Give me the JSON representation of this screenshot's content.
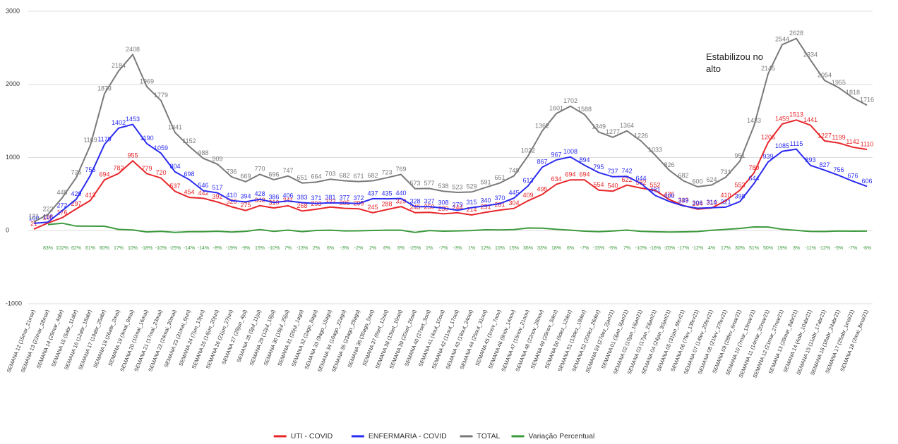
{
  "chart_data": {
    "type": "line",
    "categories": [
      "SEMANA 12 (15mar_21mar)",
      "SEMANA 13 (22mar_28mar)",
      "SEMANA 14 (29mar_4abr)",
      "SEMANA 15 (5abr_11abr)",
      "SEMANA 16 (12abr_18abr)",
      "SEMANA 17 (19abr_25abr)",
      "SEMANA 18 (26abr_2mai)",
      "SEMANA 19 (3mai_9mai)",
      "SEMANA 20 (10mai_16mai)",
      "SEMANA 21 (17mai_23mai)",
      "SEMANA 22 (24mai_30mai)",
      "SEMANA 23 (31mai_6jun)",
      "SEMANA 24 (7jun_13jun)",
      "SEMANA 25 (14jun_20jun)",
      "SEMANA 26 (21jun_27jun)",
      "SEMANA 27 (28jun_4jul)",
      "SEMANA 28 (5jul_11jul)",
      "SEMANA 29 (12jul_18jul)",
      "SEMANA 30 (19jul_25jul)",
      "SEMANA 31 (26jul_1ago)",
      "SEMANA 32 (2ago_8ago)",
      "SEMANA 33 (9ago_15ago)",
      "SEMANA 34 (16ago_22ago)",
      "SEMANA 35 (23ago_29ago)",
      "SEMANA 36 (30ago_5set)",
      "SEMANA 37 (6set_12set)",
      "SEMANA 38 (13set_19set)",
      "SEMANA 39 (20set_26set)",
      "SEMANA 40 (27set_3out)",
      "SEMANA 41 (4out_10out)",
      "SEMANA 42 (11out_17out)",
      "SEMANA 43 (18out_24out)",
      "SEMANA 44 (25out_31out)",
      "SEMANA 45 (1nov_7nov)",
      "SEMANA 46 (8nov_14nov)",
      "SEMANA 47 (15nov_21nov)",
      "SEMANA 48 (22nov_28nov)",
      "SEMANA 49 (29nov_5dez)",
      "SEMANA 50 (6dez_12dez)",
      "SEMANA 51 (13dez_19dez)",
      "SEMANA 52 (20dez_26dez)",
      "SEMANA 53 (27dez_2jan21)",
      "SEMANA 01 (3jan_9jan21)",
      "SEMANA 02 (10jan_16jan21)",
      "SEMANA 03 (17jan_23jan21)",
      "SEMANA 04 (24jan_30jan21)",
      "SEMANA 05 (31jan_6fev21)",
      "SEMANA 06 (7fev_13fev21)",
      "SEMANA 07 (14fev_20fev21)",
      "SEMANA 08 (21fev_27fev21)",
      "SEMANA 09 (28fev_6mar21)",
      "SEMANA 10 (7mar_13mar21)",
      "SEMANA 11 (14mar_20mar21)",
      "SEMANA 12 (21mar_27mar21)",
      "SEMANA 13 (28mar_3abr21)",
      "SEMANA 14 (4abr_10abr21)",
      "SEMANA 15 (11abr_17abr21)",
      "SEMANA 16 (18abr_24abr21)",
      "SEMANA 17 (25abr_1mai21)",
      "SEMANA 18 (2mai_8mai21)"
    ],
    "series": [
      {
        "name": "UTI - COVID",
        "color": "#e8262a",
        "values": [
          21,
          106,
          176,
          297,
          413,
          694,
          782,
          955,
          779,
          720,
          537,
          454,
          442,
          392,
          326,
          275,
          342,
          310,
          341,
          268,
          293,
          322,
          305,
          299,
          245,
          288,
          329,
          245,
          250,
          230,
          244,
          214,
          251,
          281,
          304,
          409,
          495,
          634,
          694,
          694,
          554,
          540,
          622,
          582,
          552,
          426,
          343,
          294,
          310,
          410,
          553,
          789,
          1206,
          1459,
          1513,
          1441,
          1227,
          1199,
          1142,
          1110
        ]
      },
      {
        "name": "ENFERMARIA - COVID",
        "color": "#2b2bf2",
        "values": [
          100,
          116,
          272,
          429,
          756,
          1179,
          1402,
          1453,
          1190,
          1059,
          804,
          698,
          546,
          517,
          410,
          394,
          428,
          386,
          406,
          383,
          371,
          381,
          377,
          372,
          437,
          435,
          440,
          328,
          327,
          308,
          279,
          315,
          340,
          370,
          445,
          613,
          867,
          967,
          1008,
          894,
          795,
          737,
          742,
          644,
          481,
          400,
          339,
          306,
          314,
          321,
          398,
          644,
          939,
          1085,
          1115,
          893,
          827,
          756,
          676,
          606
        ]
      },
      {
        "name": "TOTAL",
        "color": "#7a7a7a",
        "values": [
          121,
          222,
          448,
          726,
          1169,
          1873,
          2184,
          2408,
          1969,
          1779,
          1341,
          1152,
          988,
          909,
          736,
          669,
          770,
          696,
          747,
          651,
          664,
          703,
          682,
          671,
          682,
          723,
          769,
          573,
          577,
          538,
          523,
          529,
          591,
          651,
          749,
          1022,
          1362,
          1601,
          1702,
          1588,
          1349,
          1277,
          1364,
          1226,
          1033,
          826,
          682,
          600,
          624,
          731,
          951,
          1433,
          2145,
          2544,
          2628,
          2334,
          2054,
          1955,
          1818,
          1716
        ]
      },
      {
        "name": "Variação Percentual",
        "color": "#3d9a3d",
        "values": [
          null,
          83,
          102,
          62,
          61,
          60,
          17,
          10,
          -18,
          -10,
          -25,
          -14,
          -14,
          -8,
          -19,
          -9,
          15,
          -10,
          7,
          -13,
          2,
          6,
          -3,
          -2,
          2,
          6,
          6,
          -25,
          1,
          -7,
          -3,
          1,
          12,
          10,
          15,
          36,
          33,
          18,
          6,
          -7,
          -15,
          -5,
          7,
          -10,
          -16,
          -20,
          -17,
          -12,
          4,
          17,
          30,
          51,
          50,
          19,
          3,
          -11,
          -12,
          -5,
          -7,
          -6
        ],
        "value_labels": [
          null,
          "83%",
          "102%",
          "62%",
          "61%",
          "60%",
          "17%",
          "10%",
          "-18%",
          "-10%",
          "-25%",
          "-14%",
          "-14%",
          "-8%",
          "-19%",
          "-9%",
          "15%",
          "-10%",
          "7%",
          "-13%",
          "2%",
          "6%",
          "-3%",
          "-2%",
          "2%",
          "6%",
          "6%",
          "-25%",
          "1%",
          "-7%",
          "-3%",
          "1%",
          "12%",
          "10%",
          "15%",
          "36%",
          "33%",
          "18%",
          "6%",
          "-7%",
          "-15%",
          "-5%",
          "7%",
          "-10%",
          "-16%",
          "-20%",
          "-17%",
          "-12%",
          "4%",
          "17%",
          "30%",
          "51%",
          "50%",
          "19%",
          "3%",
          "-11%",
          "-12%",
          "-5%",
          "-7%",
          "-6%"
        ]
      }
    ],
    "ylim": [
      -1000,
      3000
    ],
    "yticks": [
      -1000,
      0,
      1000,
      2000,
      3000
    ],
    "grid": true,
    "annotation": "Estabilizou no alto",
    "legend": "bottom"
  }
}
